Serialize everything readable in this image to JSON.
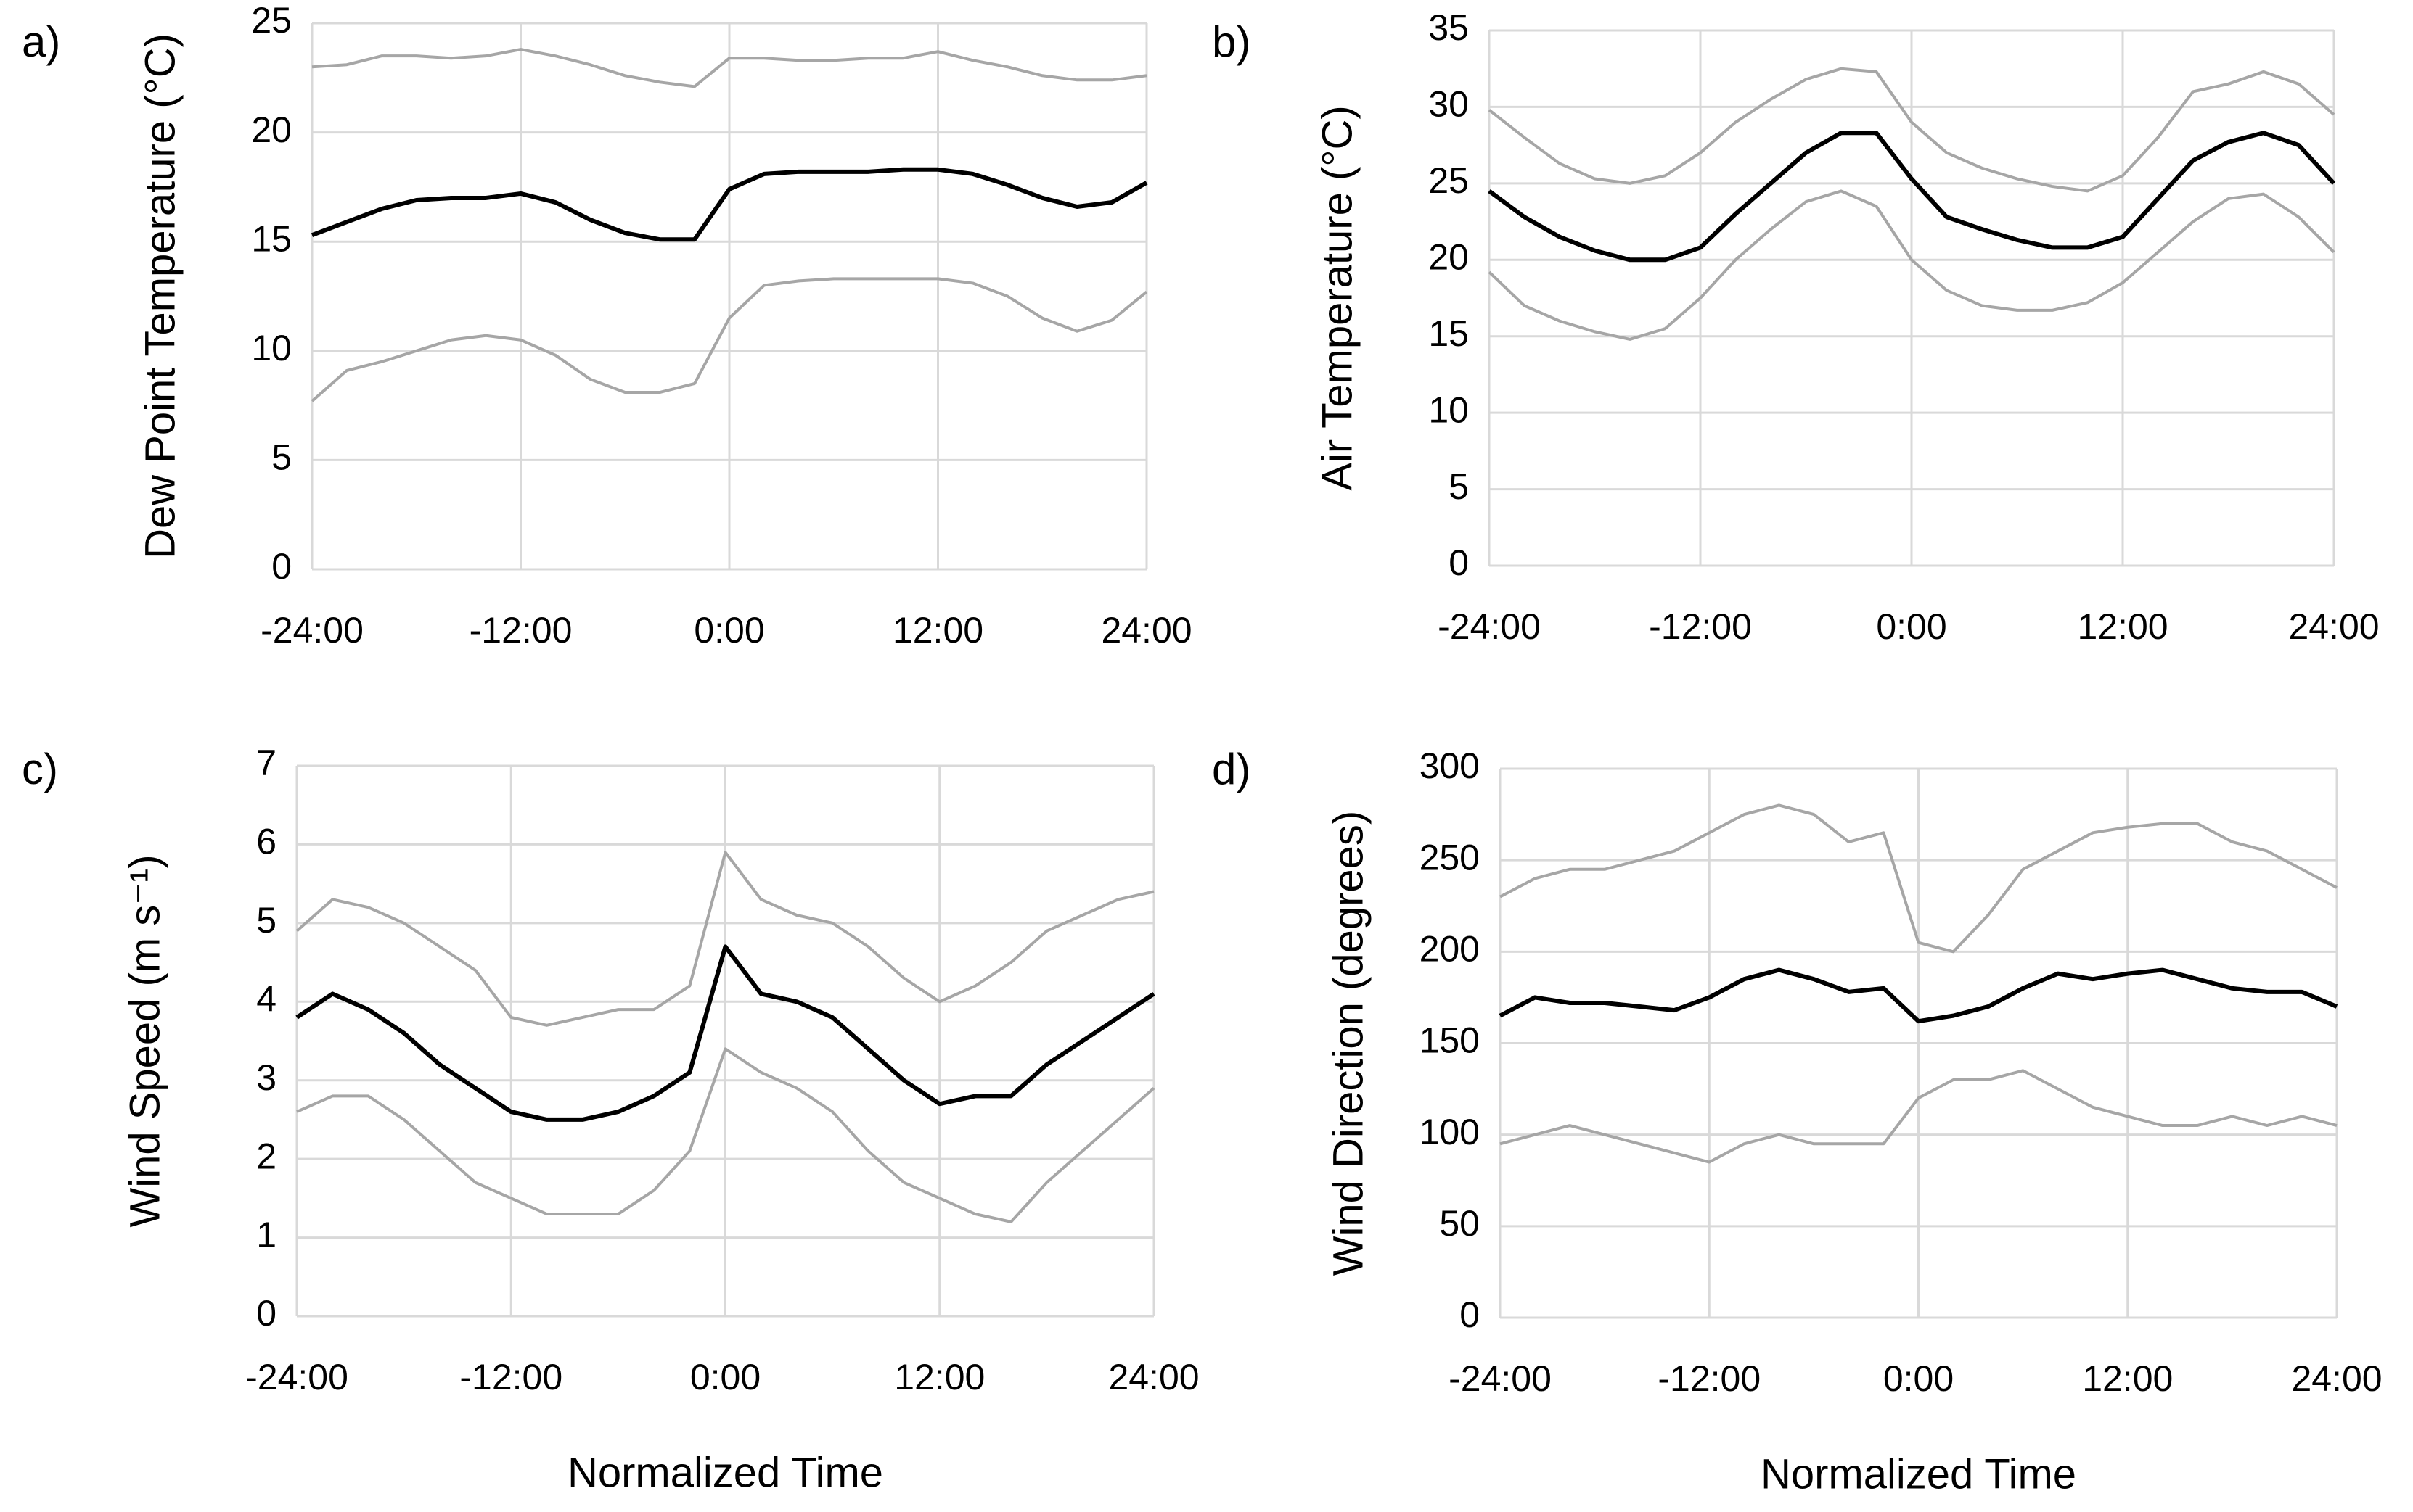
{
  "chart_data": [
    {
      "type": "line",
      "panel_label": "a)",
      "y_label": "Dew Point Temperature (°C)",
      "x": [
        -24,
        -22,
        -20,
        -18,
        -16,
        -14,
        -12,
        -10,
        -8,
        -6,
        -4,
        -2,
        0,
        2,
        4,
        6,
        8,
        10,
        12,
        14,
        16,
        18,
        20,
        22,
        24
      ],
      "series": [
        {
          "color": "#a6a6a6",
          "values": [
            23,
            23.1,
            23.5,
            23.5,
            23.4,
            23.5,
            23.8,
            23.5,
            23.1,
            22.6,
            22.3,
            22.1,
            23.4,
            23.4,
            23.3,
            23.3,
            23.4,
            23.4,
            23.7,
            23.3,
            23,
            22.6,
            22.4,
            22.4,
            22.6
          ]
        },
        {
          "color": "#000000",
          "values": [
            15.3,
            15.9,
            16.5,
            16.9,
            17,
            17,
            17.2,
            16.8,
            16,
            15.4,
            15.1,
            15.1,
            17.4,
            18.1,
            18.2,
            18.2,
            18.2,
            18.3,
            18.3,
            18.1,
            17.6,
            17,
            16.6,
            16.8,
            17.7
          ]
        },
        {
          "color": "#a6a6a6",
          "values": [
            7.7,
            9.1,
            9.5,
            10,
            10.5,
            10.7,
            10.5,
            9.8,
            8.7,
            8.1,
            8.1,
            8.5,
            11.5,
            13,
            13.2,
            13.3,
            13.3,
            13.3,
            13.3,
            13.1,
            12.5,
            11.5,
            10.9,
            11.4,
            12.7
          ]
        }
      ],
      "xlim": [
        -24,
        24
      ],
      "ylim": [
        0,
        25
      ],
      "xticks": [
        {
          "value": -24,
          "label": "-24:00"
        },
        {
          "value": -12,
          "label": "-12:00"
        },
        {
          "value": 0,
          "label": "0:00"
        },
        {
          "value": 12,
          "label": "12:00"
        },
        {
          "value": 24,
          "label": "24:00"
        }
      ],
      "yticks": [
        0,
        5,
        10,
        15,
        20,
        25
      ],
      "grid": true
    },
    {
      "type": "line",
      "panel_label": "b)",
      "y_label": "Air Temperature (°C)",
      "x": [
        -24,
        -22,
        -20,
        -18,
        -16,
        -14,
        -12,
        -10,
        -8,
        -6,
        -4,
        -2,
        0,
        2,
        4,
        6,
        8,
        10,
        12,
        14,
        16,
        18,
        20,
        22,
        24
      ],
      "series": [
        {
          "color": "#a6a6a6",
          "values": [
            29.8,
            28,
            26.3,
            25.3,
            25,
            25.5,
            27,
            29,
            30.5,
            31.8,
            32.5,
            32.3,
            29,
            27,
            26,
            25.3,
            24.8,
            24.5,
            25.5,
            28,
            31,
            31.5,
            32.3,
            31.5,
            29.5
          ]
        },
        {
          "color": "#000000",
          "values": [
            24.5,
            22.8,
            21.5,
            20.6,
            20,
            20,
            20.8,
            23,
            25,
            27,
            28.3,
            28.3,
            25.3,
            22.8,
            22,
            21.3,
            20.8,
            20.8,
            21.5,
            24,
            26.5,
            27.7,
            28.3,
            27.5,
            25
          ]
        },
        {
          "color": "#a6a6a6",
          "values": [
            19.2,
            17,
            16,
            15.3,
            14.8,
            15.5,
            17.5,
            20,
            22,
            23.8,
            24.5,
            23.5,
            20,
            18,
            17,
            16.7,
            16.7,
            17.2,
            18.5,
            20.5,
            22.5,
            24,
            24.3,
            22.8,
            20.5
          ]
        }
      ],
      "xlim": [
        -24,
        24
      ],
      "ylim": [
        0,
        35
      ],
      "xticks": [
        {
          "value": -24,
          "label": "-24:00"
        },
        {
          "value": -12,
          "label": "-12:00"
        },
        {
          "value": 0,
          "label": "0:00"
        },
        {
          "value": 12,
          "label": "12:00"
        },
        {
          "value": 24,
          "label": "24:00"
        }
      ],
      "yticks": [
        0,
        5,
        10,
        15,
        20,
        25,
        30,
        35
      ],
      "grid": true
    },
    {
      "type": "line",
      "panel_label": "c)",
      "y_label": "Wind Speed (m s⁻¹)",
      "x_label": "Normalized Time",
      "x": [
        -24,
        -22,
        -20,
        -18,
        -16,
        -14,
        -12,
        -10,
        -8,
        -6,
        -4,
        -2,
        0,
        2,
        4,
        6,
        8,
        10,
        12,
        14,
        16,
        18,
        20,
        22,
        24
      ],
      "series": [
        {
          "color": "#a6a6a6",
          "values": [
            4.9,
            5.3,
            5.2,
            5,
            4.7,
            4.4,
            3.8,
            3.7,
            3.8,
            3.9,
            3.9,
            4.2,
            5.9,
            5.3,
            5.1,
            5,
            4.7,
            4.3,
            4,
            4.2,
            4.5,
            4.9,
            5.1,
            5.3,
            5.4
          ]
        },
        {
          "color": "#000000",
          "values": [
            3.8,
            4.1,
            3.9,
            3.6,
            3.2,
            2.9,
            2.6,
            2.5,
            2.5,
            2.6,
            2.8,
            3.1,
            4.7,
            4.1,
            4,
            3.8,
            3.4,
            3,
            2.7,
            2.8,
            2.8,
            3.2,
            3.5,
            3.8,
            4.1
          ]
        },
        {
          "color": "#a6a6a6",
          "values": [
            2.6,
            2.8,
            2.8,
            2.5,
            2.1,
            1.7,
            1.5,
            1.3,
            1.3,
            1.3,
            1.6,
            2.1,
            3.4,
            3.1,
            2.9,
            2.6,
            2.1,
            1.7,
            1.5,
            1.3,
            1.2,
            1.7,
            2.1,
            2.5,
            2.9
          ]
        }
      ],
      "xlim": [
        -24,
        24
      ],
      "ylim": [
        0,
        7
      ],
      "xticks": [
        {
          "value": -24,
          "label": "-24:00"
        },
        {
          "value": -12,
          "label": "-12:00"
        },
        {
          "value": 0,
          "label": "0:00"
        },
        {
          "value": 12,
          "label": "12:00"
        },
        {
          "value": 24,
          "label": "24:00"
        }
      ],
      "yticks": [
        0,
        1,
        2,
        3,
        4,
        5,
        6,
        7
      ],
      "grid": true
    },
    {
      "type": "line",
      "panel_label": "d)",
      "y_label": "Wind Direction (degrees)",
      "x_label": "Normalized Time",
      "x": [
        -24,
        -22,
        -20,
        -18,
        -16,
        -14,
        -12,
        -10,
        -8,
        -6,
        -4,
        -2,
        0,
        2,
        4,
        6,
        8,
        10,
        12,
        14,
        16,
        18,
        20,
        22,
        24
      ],
      "series": [
        {
          "color": "#a6a6a6",
          "values": [
            230,
            240,
            245,
            245,
            250,
            255,
            265,
            275,
            280,
            275,
            260,
            265,
            205,
            200,
            220,
            245,
            255,
            265,
            268,
            270,
            270,
            260,
            255,
            245,
            235
          ]
        },
        {
          "color": "#000000",
          "values": [
            165,
            175,
            172,
            172,
            170,
            168,
            175,
            185,
            190,
            185,
            178,
            180,
            162,
            165,
            170,
            180,
            188,
            185,
            188,
            190,
            185,
            180,
            178,
            178,
            170
          ]
        },
        {
          "color": "#a6a6a6",
          "values": [
            95,
            100,
            105,
            100,
            95,
            90,
            85,
            95,
            100,
            95,
            95,
            95,
            120,
            130,
            130,
            135,
            125,
            115,
            110,
            105,
            105,
            110,
            105,
            110,
            105
          ]
        }
      ],
      "xlim": [
        -24,
        24
      ],
      "ylim": [
        0,
        300
      ],
      "xticks": [
        {
          "value": -24,
          "label": "-24:00"
        },
        {
          "value": -12,
          "label": "-12:00"
        },
        {
          "value": 0,
          "label": "0:00"
        },
        {
          "value": 12,
          "label": "12:00"
        },
        {
          "value": 24,
          "label": "24:00"
        }
      ],
      "yticks": [
        0,
        50,
        100,
        150,
        200,
        250,
        300
      ],
      "grid": true
    }
  ]
}
